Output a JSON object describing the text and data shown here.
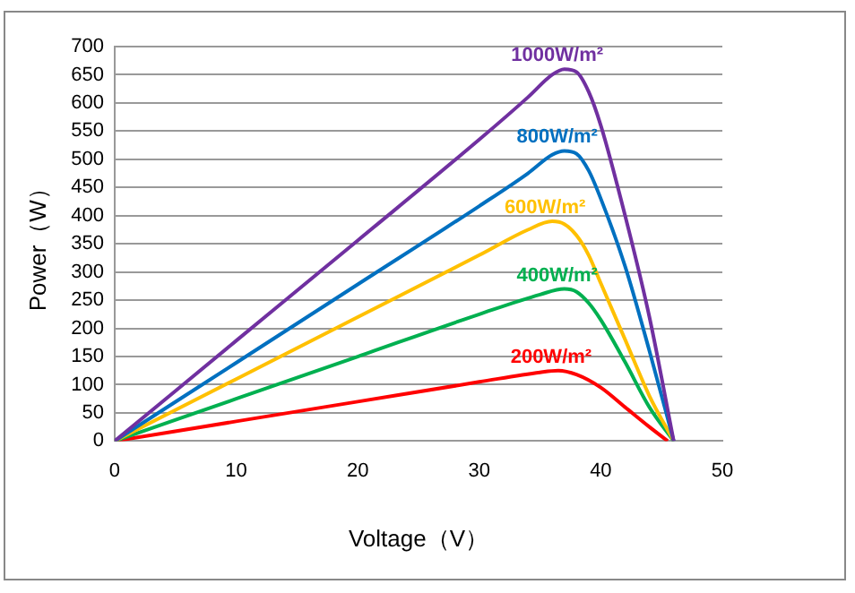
{
  "chart_data": {
    "type": "line",
    "xlabel": "Voltage（V）",
    "ylabel": "Power（W）",
    "xlim": [
      0,
      50
    ],
    "xticks": [
      0,
      10,
      20,
      30,
      40,
      50
    ],
    "ylim": [
      0,
      700
    ],
    "yticks": [
      0,
      50,
      100,
      150,
      200,
      250,
      300,
      350,
      400,
      450,
      500,
      550,
      600,
      650,
      700
    ],
    "grid": "y",
    "legend": false,
    "marker": "none",
    "line_style": "solid",
    "series": [
      {
        "name": "1000W/m²",
        "color": "#7030a0",
        "x": [
          0,
          10,
          20,
          30,
          34,
          36,
          37,
          38,
          39,
          40,
          42,
          44,
          46
        ],
        "values": [
          0,
          178,
          356,
          535,
          610,
          650,
          660,
          655,
          620,
          560,
          400,
          220,
          0
        ]
      },
      {
        "name": "800W/m²",
        "color": "#0070c0",
        "x": [
          0,
          10,
          20,
          30,
          34,
          36,
          37,
          38,
          39,
          40,
          42,
          44,
          46
        ],
        "values": [
          0,
          139,
          278,
          417,
          475,
          508,
          515,
          510,
          480,
          430,
          310,
          160,
          0
        ]
      },
      {
        "name": "600W/m²",
        "color": "#ffc000",
        "x": [
          0,
          10,
          20,
          30,
          34,
          36,
          37,
          38,
          39,
          40,
          42,
          44,
          46
        ],
        "values": [
          0,
          110,
          220,
          330,
          375,
          390,
          385,
          365,
          330,
          280,
          180,
          80,
          0
        ]
      },
      {
        "name": "400W/m²",
        "color": "#00b050",
        "x": [
          0,
          10,
          20,
          30,
          35,
          37,
          38,
          39,
          40,
          42,
          44,
          46
        ],
        "values": [
          0,
          75,
          150,
          225,
          260,
          270,
          265,
          245,
          215,
          140,
          60,
          0
        ]
      },
      {
        "name": "200W/m²",
        "color": "#ff0000",
        "x": [
          0,
          10,
          20,
          30,
          35,
          36.5,
          38,
          40,
          42,
          44,
          45.5
        ],
        "values": [
          0,
          35,
          70,
          105,
          122,
          125,
          118,
          95,
          60,
          25,
          0
        ]
      }
    ]
  }
}
